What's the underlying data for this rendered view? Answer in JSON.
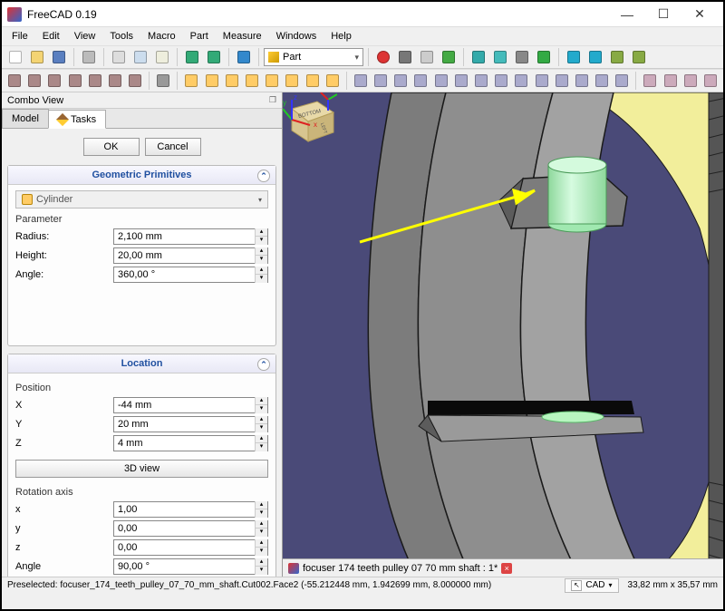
{
  "app": {
    "title": "FreeCAD 0.19"
  },
  "menus": [
    "File",
    "Edit",
    "View",
    "Tools",
    "Macro",
    "Part",
    "Measure",
    "Windows",
    "Help"
  ],
  "workbench": "Part",
  "toolbar1_icons": [
    {
      "name": "new",
      "c": "#fff",
      "border": "#89a"
    },
    {
      "name": "open",
      "c": "#f4d473"
    },
    {
      "name": "save",
      "c": "#5a7fc0"
    },
    {
      "sep": true
    },
    {
      "name": "print",
      "c": "#bbb"
    },
    {
      "sep": true
    },
    {
      "name": "cut",
      "c": "#ddd"
    },
    {
      "name": "copy",
      "c": "#cde"
    },
    {
      "name": "paste",
      "c": "#eed"
    },
    {
      "sep": true
    },
    {
      "name": "undo",
      "c": "#3a7"
    },
    {
      "name": "redo",
      "c": "#3a7"
    },
    {
      "sep": true
    },
    {
      "name": "refresh",
      "c": "#38c"
    },
    {
      "sep": true
    },
    {
      "wb": true
    },
    {
      "sep": true
    },
    {
      "name": "record-macro",
      "c": "#d33",
      "round": true
    },
    {
      "name": "stop-macro",
      "c": "#777"
    },
    {
      "name": "macros",
      "c": "#ccc"
    },
    {
      "name": "run-macro",
      "c": "#4a4"
    },
    {
      "sep": true
    },
    {
      "name": "fit-all",
      "c": "#3aa"
    },
    {
      "name": "fit-selection",
      "c": "#4bb"
    },
    {
      "name": "draw-style",
      "c": "#888"
    },
    {
      "name": "bounding",
      "c": "#3a4"
    },
    {
      "sep": true
    },
    {
      "name": "nav-back",
      "c": "#2ac"
    },
    {
      "name": "nav-forward",
      "c": "#2ac"
    },
    {
      "name": "link",
      "c": "#8a4"
    },
    {
      "name": "link2",
      "c": "#8a4"
    }
  ],
  "toolbar2_icons": [
    {
      "name": "iso",
      "c": "#a88"
    },
    {
      "name": "front",
      "c": "#a88"
    },
    {
      "name": "top",
      "c": "#a88"
    },
    {
      "name": "right",
      "c": "#a88"
    },
    {
      "name": "rear",
      "c": "#a88"
    },
    {
      "name": "bottom",
      "c": "#a88"
    },
    {
      "name": "left",
      "c": "#a88"
    },
    {
      "sep": true
    },
    {
      "name": "measure",
      "c": "#999"
    },
    {
      "sep": true
    },
    {
      "name": "cube",
      "c": "#ffcc66"
    },
    {
      "name": "cylinder",
      "c": "#ffcc66"
    },
    {
      "name": "sphere",
      "c": "#ffcc66"
    },
    {
      "name": "cone",
      "c": "#ffcc66"
    },
    {
      "name": "torus",
      "c": "#ffcc66"
    },
    {
      "name": "tube",
      "c": "#ffcc66"
    },
    {
      "name": "primitives",
      "c": "#ffcc66"
    },
    {
      "name": "builder",
      "c": "#ffcc66"
    },
    {
      "sep": true
    },
    {
      "name": "extrude",
      "c": "#aac"
    },
    {
      "name": "revolve",
      "c": "#aac"
    },
    {
      "name": "mirror",
      "c": "#aac"
    },
    {
      "name": "fillet",
      "c": "#aac"
    },
    {
      "name": "chamfer",
      "c": "#aac"
    },
    {
      "name": "ruled",
      "c": "#aac"
    },
    {
      "name": "loft",
      "c": "#aac"
    },
    {
      "name": "sweep",
      "c": "#aac"
    },
    {
      "name": "section",
      "c": "#aac"
    },
    {
      "name": "cross",
      "c": "#aac"
    },
    {
      "name": "offset",
      "c": "#aac"
    },
    {
      "name": "thickness",
      "c": "#aac"
    },
    {
      "name": "projection",
      "c": "#aac"
    },
    {
      "name": "attach",
      "c": "#aac"
    },
    {
      "sep": true
    },
    {
      "name": "compound",
      "c": "#cab"
    },
    {
      "name": "bool-cut",
      "c": "#cab"
    },
    {
      "name": "bool-union",
      "c": "#cab"
    },
    {
      "name": "bool-common",
      "c": "#cab"
    }
  ],
  "combo": {
    "title": "Combo View",
    "tabs": {
      "model": "Model",
      "tasks": "Tasks"
    },
    "ok": "OK",
    "cancel": "Cancel"
  },
  "geom_panel": {
    "title": "Geometric Primitives",
    "shape": "Cylinder",
    "param_label": "Parameter",
    "radius_label": "Radius:",
    "radius": "2,100 mm",
    "height_label": "Height:",
    "height": "20,00 mm",
    "angle_label": "Angle:",
    "angle": "360,00 °"
  },
  "loc_panel": {
    "title": "Location",
    "position_label": "Position",
    "X_label": "X",
    "X": "-44 mm",
    "Y_label": "Y",
    "Y": "20 mm",
    "Z_label": "Z",
    "Z": "4 mm",
    "view3d": "3D view",
    "rotaxis_label": "Rotation axis",
    "x_label": "x",
    "x": "1,00",
    "y_label": "y",
    "y": "0,00",
    "z_label": "z",
    "z": "0,00",
    "angle_label": "Angle",
    "angle": "90,00 °"
  },
  "doc_tab": "focuser 174 teeth pulley 07 70 mm shaft : 1*",
  "status": {
    "preselect": "Preselected: focuser_174_teeth_pulley_07_70_mm_shaft.Cut002.Face2 (-55.212448 mm, 1.942699 mm, 8.000000 mm)",
    "cad": "CAD",
    "dims": "33,82 mm x 35,57 mm"
  },
  "viewport_scene": {
    "background": "#4a4a78",
    "yellow_ring": "#f2ee9b",
    "gray_dark": "#7c7c7c",
    "gray_mid": "#8e8e8e",
    "gray_light": "#a2a2a2",
    "outline": "#1a1a1a",
    "cylinder_fill": "#b8f5c0",
    "cylinder_top": "#d4fadd",
    "arrow": "#ffff00",
    "navcube_fill": "#e8d9a8",
    "navcube_edge": "#b59f5a",
    "navcube_label": "BOTTOM",
    "navcube_side": "LEFT",
    "axis_x": "#d22",
    "axis_y": "#2c2",
    "axis_z": "#33f"
  }
}
